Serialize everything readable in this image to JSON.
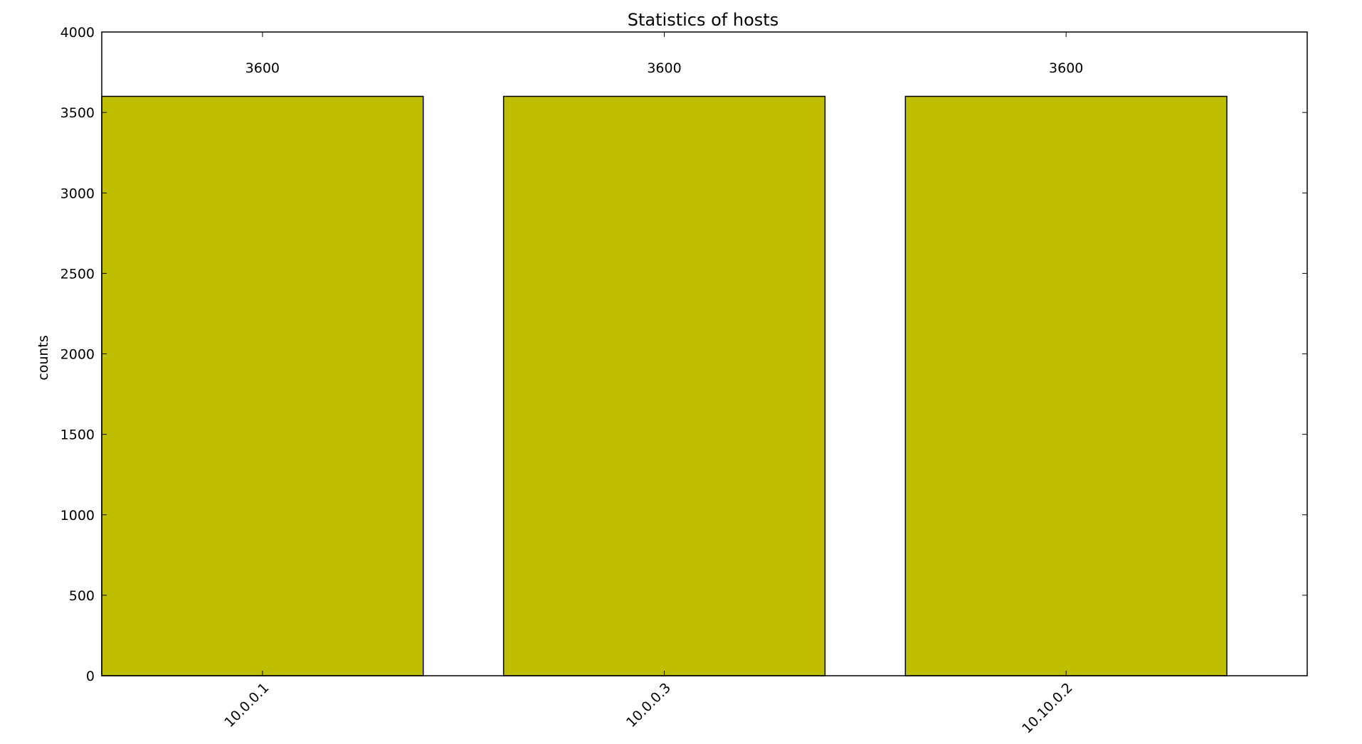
{
  "chart_data": {
    "type": "bar",
    "title": "Statistics of hosts",
    "xlabel": "",
    "ylabel": "counts",
    "categories": [
      "10.0.0.1",
      "10.0.0.3",
      "10.10.0.2"
    ],
    "values": [
      3600,
      3600,
      3600
    ],
    "data_labels": [
      "3600",
      "3600",
      "3600"
    ],
    "ylim": [
      0,
      4000
    ],
    "yticks": [
      0,
      500,
      1000,
      1500,
      2000,
      2500,
      3000,
      3500,
      4000
    ],
    "xlim": [
      0,
      3
    ],
    "bar_width": 0.8,
    "bar_color": "#bfbf00",
    "edge_color": "#000000",
    "x_tick_rotation_deg": -45,
    "grid": false,
    "legend": "none"
  }
}
